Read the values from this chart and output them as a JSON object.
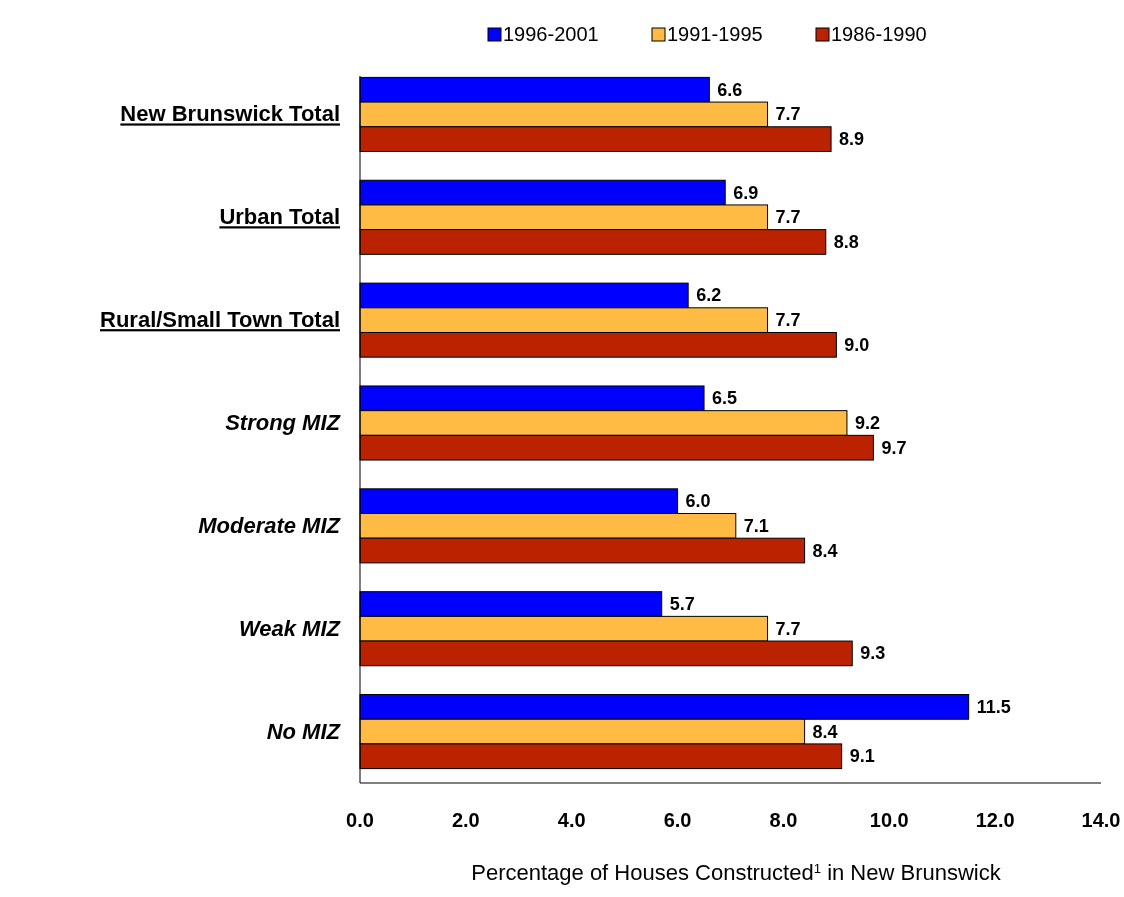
{
  "chart_data": {
    "type": "bar",
    "orientation": "horizontal",
    "xlabel": "Percentage of Houses Constructed$^{1}$ in New Brunswick",
    "categories": [
      "New Brunswick Total",
      "Urban Total",
      "Rural/Small Town Total",
      "Strong MIZ",
      "Moderate MIZ",
      "Weak MIZ",
      "No MIZ"
    ],
    "series": [
      {
        "name": "1996-2001",
        "color": "#0000ff",
        "values": [
          6.6,
          6.9,
          6.2,
          6.5,
          6.0,
          5.7,
          11.5
        ],
        "value_labels": [
          "6.6",
          "6.9",
          "6.2",
          "6.5",
          "6.0",
          "5.7",
          "11.5"
        ]
      },
      {
        "name": "1991-1995",
        "color": "#ffbb44",
        "values": [
          7.7,
          7.7,
          7.7,
          9.2,
          7.1,
          7.7,
          8.4
        ],
        "value_labels": [
          "7.7",
          "7.7",
          "7.7",
          "9.2",
          "7.1",
          "7.7",
          "8.4"
        ]
      },
      {
        "name": "1986-1990",
        "color": "#bb2200",
        "values": [
          8.9,
          8.8,
          9.0,
          9.7,
          8.4,
          9.3,
          9.1
        ],
        "value_labels": [
          "8.9",
          "8.8",
          "9.0",
          "9.7",
          "8.4",
          "9.3",
          "9.1"
        ]
      }
    ],
    "xlim": [
      0,
      14
    ],
    "xticks": [
      {
        "value": 0,
        "label": "0.0"
      },
      {
        "value": 2,
        "label": "2.0"
      },
      {
        "value": 4,
        "label": "4.0"
      },
      {
        "value": 6,
        "label": "6.0"
      },
      {
        "value": 8,
        "label": "8.0"
      },
      {
        "value": 10,
        "label": "10.0"
      },
      {
        "value": 12,
        "label": "12.0"
      },
      {
        "value": 14,
        "label": "14.0"
      }
    ],
    "legend": "top",
    "grid": false
  }
}
